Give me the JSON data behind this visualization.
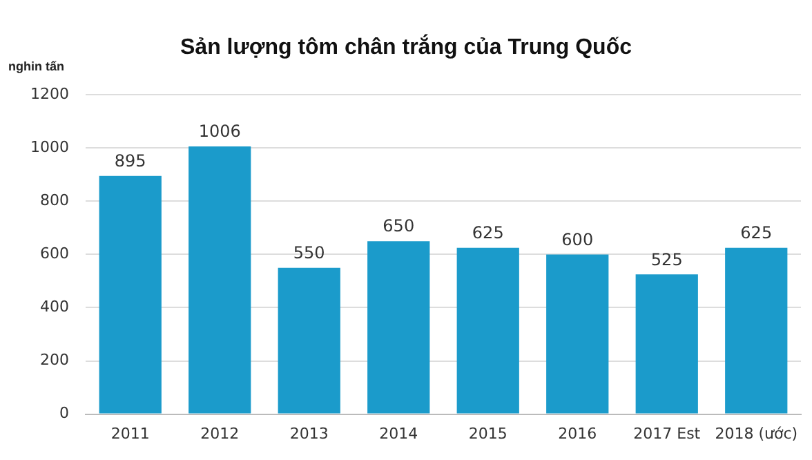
{
  "chart_data": {
    "type": "bar",
    "title": "Sản lượng tôm chân trắng của Trung Quốc",
    "ylabel": "nghin tấn",
    "categories": [
      "2011",
      "2012",
      "2013",
      "2014",
      "2015",
      "2016",
      "2017 Est",
      "2018 (ước)"
    ],
    "values": [
      895,
      1006,
      550,
      650,
      625,
      600,
      525,
      625
    ],
    "color": "#1b9bcb",
    "ylim": [
      0,
      1200
    ],
    "yticks": [
      0,
      200,
      400,
      600,
      800,
      1000,
      1200
    ],
    "grid": "y",
    "data_labels": true,
    "legend": false
  }
}
